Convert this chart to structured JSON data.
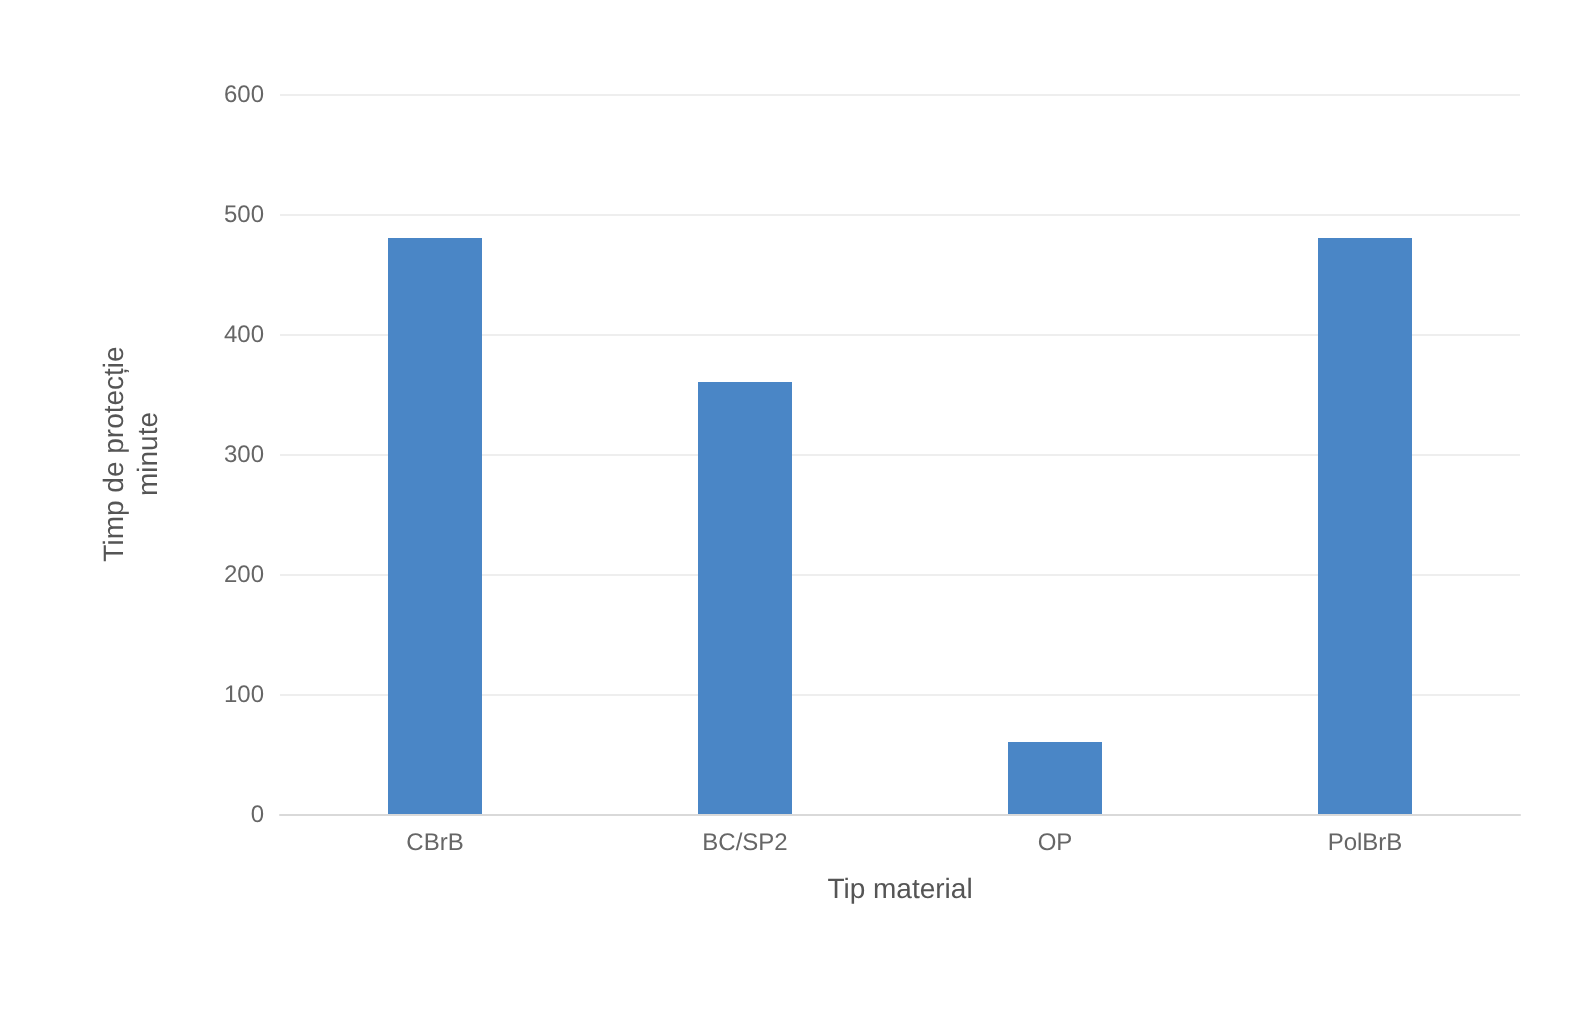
{
  "chart_data": {
    "type": "bar",
    "xlabel": "Tip material",
    "ylabel": "Timp de protecție\nminute",
    "categories": [
      "CBrB",
      "BC/SP2",
      "OP",
      "PolBrB"
    ],
    "values": [
      480,
      360,
      60,
      480
    ],
    "color": "#4a86c6",
    "ylim": [
      0,
      600
    ],
    "yticks": [
      0,
      100,
      200,
      300,
      400,
      500,
      600
    ],
    "grid": "y"
  }
}
